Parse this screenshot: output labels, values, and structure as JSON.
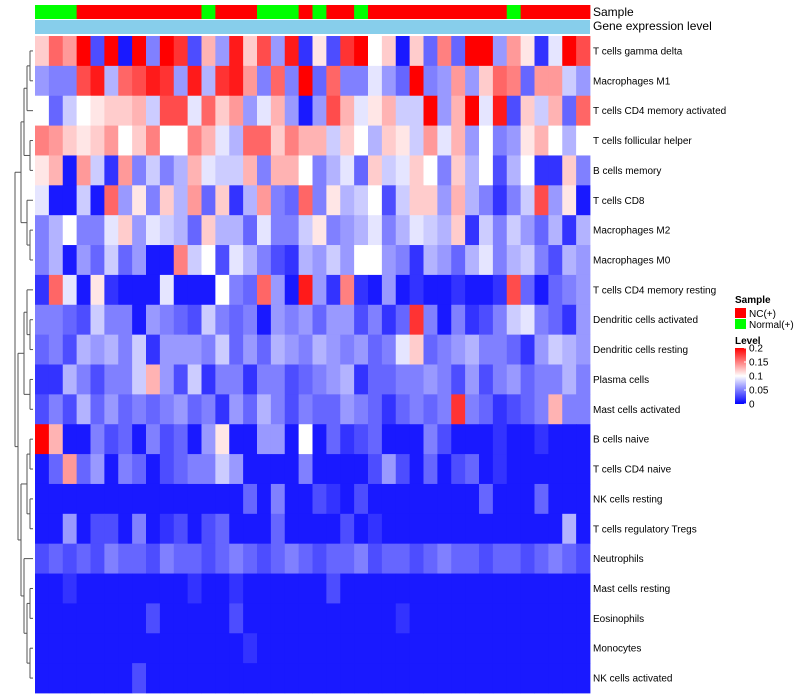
{
  "chart_data": {
    "type": "heatmap",
    "title": "",
    "annotation_labels": {
      "sample": "Sample",
      "gene_level": "Gene expression level"
    },
    "row_labels": [
      "T cells gamma delta",
      "Macrophages M1",
      "T cells CD4 memory activated",
      "T cells follicular helper",
      "B cells memory",
      "T cells CD8",
      "Macrophages M2",
      "Macrophages M0",
      "T cells CD4 memory resting",
      "Dendritic cells activated",
      "Dendritic cells resting",
      "Plasma cells",
      "Mast cells activated",
      "B cells naive",
      "T cells CD4 naive",
      "NK cells resting",
      "T cells regulatory  Tregs",
      "Neutrophils",
      "Mast cells resting",
      "Eosinophils",
      "Monocytes",
      "NK cells activated"
    ],
    "column_groups": [
      "Normal(+)",
      "Normal(+)",
      "Normal(+)",
      "NC(+)",
      "NC(+)",
      "NC(+)",
      "NC(+)",
      "NC(+)",
      "NC(+)",
      "NC(+)",
      "NC(+)",
      "NC(+)",
      "Normal(+)",
      "NC(+)",
      "NC(+)",
      "NC(+)",
      "Normal(+)",
      "Normal(+)",
      "Normal(+)",
      "NC(+)",
      "Normal(+)",
      "NC(+)",
      "NC(+)",
      "Normal(+)",
      "NC(+)",
      "NC(+)",
      "NC(+)",
      "NC(+)",
      "NC(+)",
      "NC(+)",
      "NC(+)",
      "NC(+)",
      "NC(+)",
      "NC(+)",
      "Normal(+)",
      "NC(+)",
      "NC(+)",
      "NC(+)",
      "NC(+)",
      "NC(+)"
    ],
    "values": [
      [
        0.12,
        0.16,
        0.14,
        0.2,
        0.03,
        0.2,
        0.01,
        0.2,
        0.05,
        0.2,
        0.18,
        0.03,
        0.13,
        0.06,
        0.19,
        0.12,
        0.17,
        0.06,
        0.19,
        0.02,
        0.11,
        0.03,
        0.18,
        0.2,
        0.1,
        0.12,
        0.01,
        0.12,
        0.04,
        0.15,
        0.04,
        0.2,
        0.2,
        0.06,
        0.14,
        0.11,
        0.02,
        0.09,
        0.2,
        0.17
      ],
      [
        0.06,
        0.05,
        0.05,
        0.17,
        0.19,
        0.07,
        0.16,
        0.17,
        0.19,
        0.18,
        0.06,
        0.19,
        0.07,
        0.18,
        0.19,
        0.14,
        0.05,
        0.16,
        0.05,
        0.2,
        0.04,
        0.16,
        0.05,
        0.05,
        0.09,
        0.06,
        0.04,
        0.2,
        0.05,
        0.06,
        0.14,
        0.06,
        0.12,
        0.16,
        0.15,
        0.04,
        0.14,
        0.14,
        0.08,
        0.06
      ],
      [
        0.1,
        0.04,
        0.08,
        0.1,
        0.11,
        0.12,
        0.12,
        0.13,
        0.08,
        0.17,
        0.17,
        0.09,
        0.16,
        0.12,
        0.14,
        0.06,
        0.09,
        0.13,
        0.06,
        0.01,
        0.06,
        0.17,
        0.13,
        0.09,
        0.11,
        0.13,
        0.08,
        0.08,
        0.2,
        0.06,
        0.13,
        0.2,
        0.09,
        0.19,
        0.03,
        0.12,
        0.08,
        0.13,
        0.04,
        0.16
      ],
      [
        0.15,
        0.14,
        0.12,
        0.11,
        0.12,
        0.14,
        0.1,
        0.12,
        0.15,
        0.1,
        0.1,
        0.15,
        0.13,
        0.09,
        0.07,
        0.16,
        0.16,
        0.12,
        0.15,
        0.13,
        0.13,
        0.08,
        0.12,
        0.1,
        0.07,
        0.12,
        0.11,
        0.08,
        0.14,
        0.09,
        0.13,
        0.06,
        0.1,
        0.05,
        0.06,
        0.11,
        0.13,
        0.1,
        0.07,
        0.1
      ],
      [
        0.11,
        0.13,
        0.01,
        0.14,
        0.08,
        0.02,
        0.14,
        0.05,
        0.08,
        0.05,
        0.07,
        0.13,
        0.09,
        0.08,
        0.08,
        0.13,
        0.05,
        0.13,
        0.13,
        0.1,
        0.05,
        0.07,
        0.09,
        0.04,
        0.12,
        0.08,
        0.09,
        0.12,
        0.1,
        0.05,
        0.12,
        0.07,
        0.1,
        0.03,
        0.07,
        0.1,
        0.02,
        0.02,
        0.12,
        0.05
      ],
      [
        0.09,
        0.01,
        0.01,
        0.08,
        0.01,
        0.16,
        0.06,
        0.11,
        0.05,
        0.12,
        0.07,
        0.14,
        0.04,
        0.12,
        0.02,
        0.07,
        0.14,
        0.05,
        0.04,
        0.16,
        0.05,
        0.11,
        0.07,
        0.08,
        0.1,
        0.03,
        0.08,
        0.12,
        0.12,
        0.06,
        0.13,
        0.07,
        0.05,
        0.02,
        0.05,
        0.08,
        0.17,
        0.06,
        0.11,
        0.01
      ],
      [
        0.05,
        0.07,
        0.1,
        0.05,
        0.05,
        0.09,
        0.12,
        0.06,
        0.09,
        0.08,
        0.07,
        0.04,
        0.12,
        0.07,
        0.07,
        0.04,
        0.09,
        0.05,
        0.05,
        0.08,
        0.11,
        0.05,
        0.06,
        0.07,
        0.09,
        0.05,
        0.07,
        0.09,
        0.08,
        0.07,
        0.12,
        0.02,
        0.08,
        0.05,
        0.08,
        0.06,
        0.04,
        0.07,
        0.02,
        0.07
      ],
      [
        0.05,
        0.07,
        0.01,
        0.06,
        0.04,
        0.08,
        0.04,
        0.06,
        0.01,
        0.01,
        0.15,
        0.08,
        0.1,
        0.03,
        0.09,
        0.07,
        0.05,
        0.03,
        0.02,
        0.07,
        0.06,
        0.08,
        0.06,
        0.1,
        0.1,
        0.06,
        0.05,
        0.02,
        0.07,
        0.06,
        0.04,
        0.07,
        0.09,
        0.05,
        0.07,
        0.08,
        0.05,
        0.03,
        0.07,
        0.06
      ],
      [
        0.02,
        0.16,
        0.09,
        0.01,
        0.11,
        0.02,
        0.01,
        0.01,
        0.01,
        0.09,
        0.01,
        0.01,
        0.01,
        0.1,
        0.05,
        0.04,
        0.16,
        0.06,
        0.01,
        0.19,
        0.06,
        0.02,
        0.15,
        0.02,
        0.01,
        0.06,
        0.01,
        0.02,
        0.01,
        0.01,
        0.02,
        0.01,
        0.01,
        0.02,
        0.17,
        0.04,
        0.01,
        0.04,
        0.05,
        0.06
      ],
      [
        0.05,
        0.05,
        0.04,
        0.03,
        0.08,
        0.05,
        0.05,
        0.01,
        0.06,
        0.05,
        0.04,
        0.03,
        0.08,
        0.05,
        0.04,
        0.05,
        0.01,
        0.06,
        0.05,
        0.06,
        0.04,
        0.06,
        0.06,
        0.03,
        0.05,
        0.02,
        0.04,
        0.18,
        0.05,
        0.01,
        0.05,
        0.02,
        0.03,
        0.05,
        0.08,
        0.09,
        0.05,
        0.04,
        0.02,
        0.06
      ],
      [
        0.04,
        0.05,
        0.03,
        0.07,
        0.06,
        0.07,
        0.05,
        0.08,
        0.02,
        0.06,
        0.06,
        0.06,
        0.05,
        0.08,
        0.04,
        0.06,
        0.04,
        0.07,
        0.06,
        0.05,
        0.07,
        0.06,
        0.05,
        0.06,
        0.04,
        0.05,
        0.09,
        0.12,
        0.04,
        0.05,
        0.06,
        0.07,
        0.05,
        0.05,
        0.04,
        0.02,
        0.06,
        0.08,
        0.07,
        0.06
      ],
      [
        0.02,
        0.02,
        0.07,
        0.05,
        0.03,
        0.05,
        0.05,
        0.08,
        0.13,
        0.06,
        0.03,
        0.08,
        0.02,
        0.05,
        0.05,
        0.02,
        0.05,
        0.05,
        0.03,
        0.04,
        0.05,
        0.06,
        0.07,
        0.02,
        0.04,
        0.04,
        0.05,
        0.05,
        0.06,
        0.05,
        0.03,
        0.06,
        0.03,
        0.05,
        0.06,
        0.04,
        0.05,
        0.05,
        0.07,
        0.05
      ],
      [
        0.03,
        0.05,
        0.03,
        0.07,
        0.04,
        0.06,
        0.04,
        0.05,
        0.04,
        0.05,
        0.06,
        0.04,
        0.05,
        0.02,
        0.06,
        0.04,
        0.07,
        0.05,
        0.03,
        0.05,
        0.04,
        0.04,
        0.06,
        0.05,
        0.04,
        0.02,
        0.04,
        0.05,
        0.04,
        0.05,
        0.18,
        0.05,
        0.04,
        0.02,
        0.03,
        0.04,
        0.05,
        0.13,
        0.05,
        0.05
      ],
      [
        0.2,
        0.13,
        0.01,
        0.01,
        0.05,
        0.03,
        0.04,
        0.01,
        0.05,
        0.03,
        0.04,
        0.01,
        0.06,
        0.11,
        0.01,
        0.01,
        0.06,
        0.06,
        0.01,
        0.1,
        0.01,
        0.04,
        0.02,
        0.03,
        0.04,
        0.01,
        0.01,
        0.01,
        0.05,
        0.03,
        0.01,
        0.01,
        0.01,
        0.02,
        0.01,
        0.01,
        0.02,
        0.01,
        0.01,
        0.01
      ],
      [
        0.01,
        0.04,
        0.14,
        0.04,
        0.06,
        0.01,
        0.05,
        0.04,
        0.01,
        0.03,
        0.04,
        0.05,
        0.05,
        0.08,
        0.06,
        0.01,
        0.01,
        0.01,
        0.01,
        0.05,
        0.01,
        0.01,
        0.01,
        0.01,
        0.03,
        0.06,
        0.03,
        0.01,
        0.04,
        0.01,
        0.03,
        0.04,
        0.01,
        0.02,
        0.01,
        0.01,
        0.01,
        0.01,
        0.01,
        0.01
      ],
      [
        0.01,
        0.01,
        0.01,
        0.01,
        0.01,
        0.01,
        0.01,
        0.01,
        0.01,
        0.01,
        0.01,
        0.01,
        0.01,
        0.01,
        0.01,
        0.04,
        0.01,
        0.05,
        0.01,
        0.01,
        0.03,
        0.02,
        0.01,
        0.03,
        0.01,
        0.01,
        0.01,
        0.01,
        0.01,
        0.01,
        0.01,
        0.01,
        0.04,
        0.01,
        0.01,
        0.01,
        0.04,
        0.01,
        0.01,
        0.01
      ],
      [
        0.01,
        0.01,
        0.06,
        0.01,
        0.03,
        0.03,
        0.01,
        0.05,
        0.01,
        0.02,
        0.03,
        0.01,
        0.03,
        0.04,
        0.01,
        0.01,
        0.01,
        0.04,
        0.01,
        0.01,
        0.01,
        0.01,
        0.03,
        0.01,
        0.02,
        0.01,
        0.01,
        0.01,
        0.01,
        0.01,
        0.01,
        0.01,
        0.01,
        0.01,
        0.01,
        0.01,
        0.01,
        0.01,
        0.07,
        0.01
      ],
      [
        0.03,
        0.04,
        0.03,
        0.04,
        0.03,
        0.05,
        0.04,
        0.04,
        0.03,
        0.05,
        0.04,
        0.04,
        0.03,
        0.04,
        0.05,
        0.04,
        0.03,
        0.04,
        0.05,
        0.04,
        0.03,
        0.04,
        0.04,
        0.05,
        0.03,
        0.04,
        0.04,
        0.03,
        0.04,
        0.05,
        0.04,
        0.04,
        0.03,
        0.04,
        0.04,
        0.03,
        0.04,
        0.05,
        0.04,
        0.03
      ],
      [
        0.01,
        0.01,
        0.02,
        0.01,
        0.01,
        0.01,
        0.01,
        0.01,
        0.01,
        0.01,
        0.01,
        0.02,
        0.01,
        0.01,
        0.02,
        0.01,
        0.01,
        0.01,
        0.01,
        0.01,
        0.01,
        0.03,
        0.01,
        0.01,
        0.01,
        0.01,
        0.01,
        0.01,
        0.01,
        0.01,
        0.01,
        0.01,
        0.01,
        0.01,
        0.01,
        0.01,
        0.01,
        0.01,
        0.01,
        0.01
      ],
      [
        0.01,
        0.01,
        0.01,
        0.01,
        0.01,
        0.01,
        0.01,
        0.01,
        0.03,
        0.01,
        0.01,
        0.01,
        0.01,
        0.01,
        0.03,
        0.01,
        0.01,
        0.01,
        0.01,
        0.01,
        0.01,
        0.01,
        0.01,
        0.01,
        0.01,
        0.01,
        0.02,
        0.01,
        0.01,
        0.01,
        0.01,
        0.01,
        0.01,
        0.01,
        0.01,
        0.01,
        0.01,
        0.01,
        0.01,
        0.01
      ],
      [
        0.01,
        0.01,
        0.01,
        0.01,
        0.01,
        0.01,
        0.01,
        0.01,
        0.01,
        0.01,
        0.01,
        0.01,
        0.01,
        0.01,
        0.01,
        0.02,
        0.01,
        0.01,
        0.01,
        0.01,
        0.01,
        0.01,
        0.01,
        0.01,
        0.01,
        0.01,
        0.01,
        0.01,
        0.01,
        0.01,
        0.01,
        0.01,
        0.01,
        0.01,
        0.01,
        0.01,
        0.01,
        0.01,
        0.01,
        0.01
      ],
      [
        0.01,
        0.01,
        0.01,
        0.01,
        0.01,
        0.01,
        0.01,
        0.03,
        0.01,
        0.01,
        0.01,
        0.01,
        0.01,
        0.01,
        0.01,
        0.01,
        0.01,
        0.01,
        0.01,
        0.01,
        0.01,
        0.01,
        0.01,
        0.01,
        0.01,
        0.01,
        0.01,
        0.01,
        0.01,
        0.01,
        0.01,
        0.01,
        0.01,
        0.01,
        0.01,
        0.01,
        0.01,
        0.01,
        0.01,
        0.01
      ]
    ],
    "color_scale": {
      "low": "#0000ff",
      "mid": "#ffffff",
      "high": "#ff0000",
      "min": 0,
      "mid_value": 0.1,
      "max": 0.2
    },
    "gene_level_color": "#87ceeb",
    "legend": {
      "sample_title": "Sample",
      "sample_entries": [
        {
          "label": "NC(+)",
          "color": "#ff0000"
        },
        {
          "label": "Normal(+)",
          "color": "#00ff00"
        }
      ],
      "level_title": "Level",
      "level_ticks": [
        "0.2",
        "0.15",
        "0.1",
        "0.05",
        "0"
      ],
      "placement": "right"
    }
  }
}
